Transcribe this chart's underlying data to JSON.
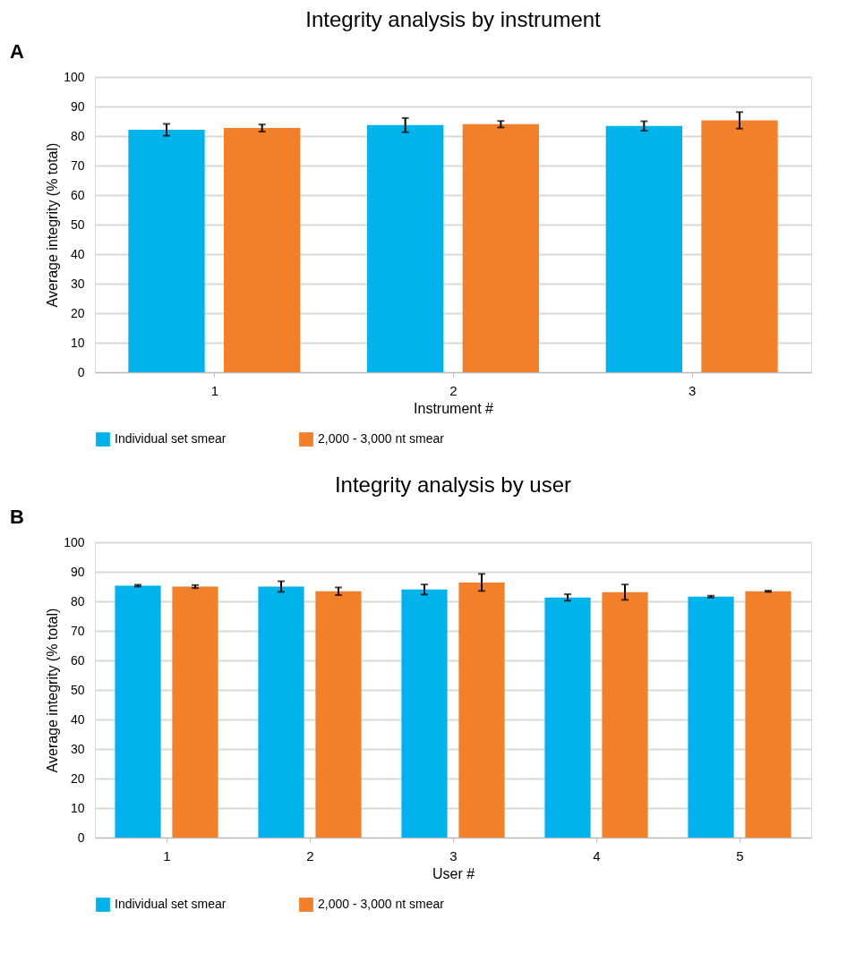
{
  "chart_data": [
    {
      "type": "bar",
      "title": "Integrity analysis by instrument",
      "annotations": [
        "A"
      ],
      "xlabel": "Instrument #",
      "ylabel": "Average integrity (% total)",
      "categories": [
        "1",
        "2",
        "3"
      ],
      "series": [
        {
          "name": "Individual set smear",
          "color": "#00b4eb",
          "values": [
            82.1,
            83.7,
            83.4
          ],
          "errors": [
            2.0,
            2.4,
            1.6
          ]
        },
        {
          "name": "2,000 - 3,000 nt smear",
          "color": "#f27f29",
          "values": [
            82.7,
            84.0,
            85.3
          ],
          "errors": [
            1.2,
            1.1,
            2.8
          ]
        }
      ],
      "ylim": [
        0,
        100
      ],
      "yticks": [
        0,
        10,
        20,
        30,
        40,
        50,
        60,
        70,
        80,
        90,
        100
      ],
      "grid": "y",
      "legend": "bottom"
    },
    {
      "type": "bar",
      "title": "Integrity analysis by user",
      "annotations": [
        "B"
      ],
      "xlabel": "User #",
      "ylabel": "Average integrity (% total)",
      "categories": [
        "1",
        "2",
        "3",
        "4",
        "5"
      ],
      "series": [
        {
          "name": "Individual set smear",
          "color": "#00b4eb",
          "values": [
            85.3,
            85.0,
            84.0,
            81.3,
            81.6
          ],
          "errors": [
            0.3,
            1.8,
            1.7,
            1.1,
            0.3
          ]
        },
        {
          "name": "2,000 - 3,000 nt smear",
          "color": "#f27f29",
          "values": [
            85.0,
            83.4,
            86.4,
            83.1,
            83.4
          ],
          "errors": [
            0.5,
            1.3,
            2.9,
            2.6,
            0.2
          ]
        }
      ],
      "ylim": [
        0,
        100
      ],
      "yticks": [
        0,
        10,
        20,
        30,
        40,
        50,
        60,
        70,
        80,
        90,
        100
      ],
      "grid": "y",
      "legend": "bottom"
    }
  ]
}
